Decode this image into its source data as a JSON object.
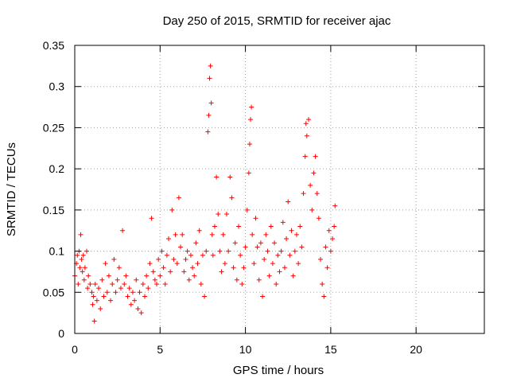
{
  "chart_data": {
    "type": "scatter",
    "title": "Day 250 of 2015, SRMTID for receiver ajac",
    "xlabel": "GPS time / hours",
    "ylabel": "SRMTID / TECUs",
    "xlim": [
      0,
      24
    ],
    "ylim": [
      0,
      0.35
    ],
    "xticks": [
      "0",
      "5",
      "10",
      "15",
      "20"
    ],
    "yticks": [
      "0",
      "0.05",
      "0.1",
      "0.15",
      "0.2",
      "0.25",
      "0.3",
      "0.35"
    ],
    "grid": true,
    "marker": "plus",
    "color": "#ff0000",
    "series": [
      {
        "points": [
          [
            0.0,
            0.07
          ],
          [
            0.1,
            0.085
          ],
          [
            0.15,
            0.095
          ],
          [
            0.2,
            0.06
          ],
          [
            0.25,
            0.1
          ],
          [
            0.3,
            0.08
          ],
          [
            0.35,
            0.12
          ],
          [
            0.4,
            0.09
          ],
          [
            0.45,
            0.075
          ],
          [
            0.5,
            0.095
          ],
          [
            0.55,
            0.065
          ],
          [
            0.6,
            0.08
          ],
          [
            0.7,
            0.1
          ],
          [
            0.75,
            0.055
          ],
          [
            0.8,
            0.07
          ],
          [
            0.9,
            0.06
          ],
          [
            1.0,
            0.05
          ],
          [
            1.05,
            0.035
          ],
          [
            1.1,
            0.045
          ],
          [
            1.15,
            0.015
          ],
          [
            1.2,
            0.06
          ],
          [
            1.3,
            0.04
          ],
          [
            1.4,
            0.055
          ],
          [
            1.5,
            0.03
          ],
          [
            1.6,
            0.065
          ],
          [
            1.7,
            0.045
          ],
          [
            1.8,
            0.085
          ],
          [
            1.9,
            0.05
          ],
          [
            2.0,
            0.07
          ],
          [
            2.1,
            0.04
          ],
          [
            2.2,
            0.06
          ],
          [
            2.3,
            0.09
          ],
          [
            2.4,
            0.05
          ],
          [
            2.5,
            0.065
          ],
          [
            2.6,
            0.08
          ],
          [
            2.7,
            0.055
          ],
          [
            2.8,
            0.125
          ],
          [
            2.9,
            0.06
          ],
          [
            3.0,
            0.07
          ],
          [
            3.1,
            0.045
          ],
          [
            3.2,
            0.055
          ],
          [
            3.3,
            0.035
          ],
          [
            3.4,
            0.05
          ],
          [
            3.5,
            0.04
          ],
          [
            3.6,
            0.065
          ],
          [
            3.7,
            0.03
          ],
          [
            3.8,
            0.05
          ],
          [
            3.9,
            0.025
          ],
          [
            4.0,
            0.06
          ],
          [
            4.1,
            0.045
          ],
          [
            4.2,
            0.07
          ],
          [
            4.3,
            0.055
          ],
          [
            4.4,
            0.085
          ],
          [
            4.5,
            0.14
          ],
          [
            4.6,
            0.075
          ],
          [
            4.7,
            0.065
          ],
          [
            4.8,
            0.06
          ],
          [
            4.9,
            0.09
          ],
          [
            5.0,
            0.07
          ],
          [
            5.1,
            0.1
          ],
          [
            5.2,
            0.08
          ],
          [
            5.3,
            0.06
          ],
          [
            5.4,
            0.095
          ],
          [
            5.5,
            0.115
          ],
          [
            5.6,
            0.075
          ],
          [
            5.7,
            0.15
          ],
          [
            5.8,
            0.09
          ],
          [
            5.9,
            0.12
          ],
          [
            6.0,
            0.085
          ],
          [
            6.1,
            0.165
          ],
          [
            6.2,
            0.105
          ],
          [
            6.3,
            0.12
          ],
          [
            6.4,
            0.075
          ],
          [
            6.5,
            0.09
          ],
          [
            6.6,
            0.1
          ],
          [
            6.7,
            0.065
          ],
          [
            6.8,
            0.095
          ],
          [
            6.9,
            0.08
          ],
          [
            7.0,
            0.07
          ],
          [
            7.1,
            0.11
          ],
          [
            7.2,
            0.085
          ],
          [
            7.3,
            0.125
          ],
          [
            7.4,
            0.06
          ],
          [
            7.5,
            0.095
          ],
          [
            7.6,
            0.045
          ],
          [
            7.7,
            0.1
          ],
          [
            7.8,
            0.245
          ],
          [
            7.85,
            0.265
          ],
          [
            7.9,
            0.31
          ],
          [
            7.95,
            0.325
          ],
          [
            8.0,
            0.28
          ],
          [
            8.05,
            0.12
          ],
          [
            8.1,
            0.095
          ],
          [
            8.2,
            0.13
          ],
          [
            8.3,
            0.19
          ],
          [
            8.4,
            0.145
          ],
          [
            8.5,
            0.1
          ],
          [
            8.6,
            0.075
          ],
          [
            8.7,
            0.12
          ],
          [
            8.8,
            0.085
          ],
          [
            8.9,
            0.145
          ],
          [
            9.0,
            0.1
          ],
          [
            9.1,
            0.19
          ],
          [
            9.2,
            0.165
          ],
          [
            9.3,
            0.08
          ],
          [
            9.4,
            0.11
          ],
          [
            9.5,
            0.065
          ],
          [
            9.6,
            0.13
          ],
          [
            9.7,
            0.095
          ],
          [
            9.8,
            0.06
          ],
          [
            9.9,
            0.08
          ],
          [
            10.0,
            0.105
          ],
          [
            10.1,
            0.15
          ],
          [
            10.2,
            0.195
          ],
          [
            10.25,
            0.23
          ],
          [
            10.3,
            0.26
          ],
          [
            10.35,
            0.275
          ],
          [
            10.4,
            0.12
          ],
          [
            10.5,
            0.085
          ],
          [
            10.6,
            0.14
          ],
          [
            10.7,
            0.105
          ],
          [
            10.8,
            0.065
          ],
          [
            10.9,
            0.11
          ],
          [
            11.0,
            0.045
          ],
          [
            11.1,
            0.09
          ],
          [
            11.2,
            0.12
          ],
          [
            11.3,
            0.1
          ],
          [
            11.4,
            0.07
          ],
          [
            11.5,
            0.13
          ],
          [
            11.6,
            0.085
          ],
          [
            11.7,
            0.11
          ],
          [
            11.8,
            0.06
          ],
          [
            11.9,
            0.095
          ],
          [
            12.0,
            0.075
          ],
          [
            12.1,
            0.1
          ],
          [
            12.2,
            0.135
          ],
          [
            12.3,
            0.08
          ],
          [
            12.4,
            0.115
          ],
          [
            12.5,
            0.16
          ],
          [
            12.6,
            0.095
          ],
          [
            12.7,
            0.125
          ],
          [
            12.8,
            0.07
          ],
          [
            12.9,
            0.1
          ],
          [
            13.0,
            0.12
          ],
          [
            13.1,
            0.085
          ],
          [
            13.2,
            0.13
          ],
          [
            13.3,
            0.105
          ],
          [
            13.4,
            0.17
          ],
          [
            13.5,
            0.215
          ],
          [
            13.55,
            0.255
          ],
          [
            13.6,
            0.24
          ],
          [
            13.7,
            0.26
          ],
          [
            13.8,
            0.18
          ],
          [
            13.9,
            0.15
          ],
          [
            14.0,
            0.195
          ],
          [
            14.1,
            0.215
          ],
          [
            14.2,
            0.17
          ],
          [
            14.3,
            0.14
          ],
          [
            14.4,
            0.09
          ],
          [
            14.5,
            0.06
          ],
          [
            14.6,
            0.045
          ],
          [
            14.7,
            0.105
          ],
          [
            14.8,
            0.08
          ],
          [
            14.9,
            0.125
          ],
          [
            15.0,
            0.1
          ],
          [
            15.1,
            0.115
          ],
          [
            15.2,
            0.13
          ],
          [
            15.25,
            0.155
          ]
        ]
      }
    ]
  }
}
